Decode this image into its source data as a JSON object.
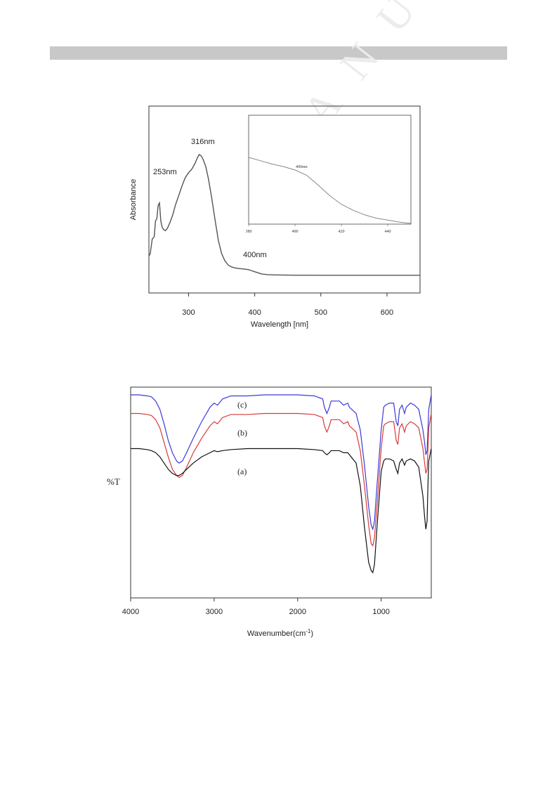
{
  "watermark": "MANUSCRIPT",
  "chart_data": [
    {
      "type": "line",
      "title": "",
      "xlabel": "Wavelength [nm]",
      "ylabel": "Absorbance",
      "xlim": [
        240,
        650
      ],
      "xticks": [
        300,
        400,
        500,
        600
      ],
      "annotations": [
        "253nm",
        "316nm",
        "400nm"
      ],
      "series": [
        {
          "color": "#555555",
          "x": [
            240,
            242,
            245,
            248,
            250,
            252,
            254,
            256,
            258,
            260,
            262,
            265,
            268,
            272,
            276,
            280,
            285,
            290,
            295,
            300,
            305,
            310,
            313,
            316,
            319,
            322,
            326,
            330,
            335,
            340,
            345,
            350,
            355,
            360,
            365,
            370,
            375,
            380,
            385,
            390,
            395,
            400,
            405,
            410,
            420,
            430,
            440,
            460,
            480,
            500,
            550,
            600,
            650
          ],
          "y": [
            0.16,
            0.18,
            0.3,
            0.32,
            0.45,
            0.47,
            0.58,
            0.6,
            0.45,
            0.4,
            0.38,
            0.37,
            0.39,
            0.44,
            0.5,
            0.58,
            0.66,
            0.74,
            0.81,
            0.85,
            0.88,
            0.93,
            0.97,
            1.0,
            0.99,
            0.96,
            0.9,
            0.8,
            0.64,
            0.46,
            0.29,
            0.18,
            0.12,
            0.085,
            0.07,
            0.062,
            0.058,
            0.055,
            0.052,
            0.048,
            0.04,
            0.03,
            0.022,
            0.012,
            0.006,
            0.004,
            0.003,
            0.002,
            0.002,
            0.001,
            0.001,
            0.001,
            0.001
          ]
        }
      ]
    },
    {
      "type": "line",
      "title": "",
      "xlabel": "",
      "ylabel": "",
      "xlim": [
        380,
        450
      ],
      "xticks": [
        380,
        400,
        420,
        440
      ],
      "annotations": [
        "400nm"
      ],
      "series": [
        {
          "color": "#888888",
          "x": [
            380,
            385,
            390,
            395,
            400,
            405,
            410,
            415,
            420,
            425,
            430,
            435,
            440,
            445,
            450
          ],
          "y": [
            1.0,
            0.95,
            0.9,
            0.86,
            0.81,
            0.73,
            0.58,
            0.42,
            0.29,
            0.2,
            0.13,
            0.08,
            0.05,
            0.02,
            0.0
          ]
        }
      ]
    },
    {
      "type": "line",
      "title": "",
      "xlabel": "Wavenumber(cm",
      "xlabel_sup": "-1",
      "xlabel_end": ")",
      "ylabel": "%T",
      "xlim": [
        4000,
        400
      ],
      "xticks": [
        4000,
        3000,
        2000,
        1000
      ],
      "series": [
        {
          "name": "(c)",
          "color": "#3a3ad8",
          "x": [
            4000,
            3900,
            3800,
            3750,
            3700,
            3650,
            3600,
            3550,
            3500,
            3450,
            3420,
            3380,
            3330,
            3250,
            3150,
            3050,
            3000,
            2960,
            2900,
            2800,
            2600,
            2400,
            2200,
            2000,
            1800,
            1700,
            1680,
            1650,
            1620,
            1600,
            1500,
            1450,
            1400,
            1380,
            1300,
            1250,
            1200,
            1150,
            1120,
            1100,
            1080,
            1050,
            1000,
            970,
            950,
            900,
            850,
            820,
            800,
            780,
            750,
            720,
            700,
            650,
            600,
            550,
            500,
            480,
            465,
            450,
            440,
            430,
            400
          ],
          "y": [
            99,
            99,
            98.5,
            98,
            96,
            92,
            85,
            77,
            71,
            67,
            66,
            67,
            71,
            78,
            86,
            93,
            95,
            94,
            97,
            98.5,
            98.5,
            99,
            99,
            99,
            98.5,
            97,
            93,
            90,
            93,
            96,
            96,
            94,
            95,
            93,
            90,
            82,
            65,
            45,
            36,
            34,
            38,
            55,
            82,
            93,
            94,
            95,
            95,
            86,
            84,
            92,
            94,
            90,
            93,
            95,
            94,
            92,
            82,
            76,
            70,
            72,
            82,
            92,
            99
          ]
        },
        {
          "name": "(b)",
          "color": "#d83a3a",
          "x": [
            4000,
            3900,
            3800,
            3750,
            3700,
            3650,
            3600,
            3550,
            3500,
            3450,
            3420,
            3380,
            3330,
            3250,
            3150,
            3050,
            3000,
            2960,
            2900,
            2800,
            2600,
            2400,
            2200,
            2000,
            1800,
            1700,
            1680,
            1650,
            1620,
            1600,
            1500,
            1450,
            1400,
            1380,
            1300,
            1250,
            1200,
            1150,
            1120,
            1100,
            1080,
            1050,
            1000,
            970,
            950,
            900,
            850,
            820,
            800,
            780,
            750,
            720,
            700,
            650,
            600,
            550,
            500,
            480,
            465,
            450,
            440,
            430,
            400
          ],
          "y": [
            90,
            90,
            89.5,
            89,
            87,
            83,
            76,
            69,
            63,
            60,
            59,
            60,
            64,
            71,
            78,
            84,
            86,
            85,
            88,
            89.5,
            89.5,
            90,
            90,
            90,
            89.5,
            88,
            84,
            81,
            84,
            87,
            87,
            85,
            86,
            84,
            81,
            72,
            55,
            36,
            27,
            26,
            30,
            45,
            73,
            84,
            85,
            86,
            86,
            77,
            75,
            83,
            85,
            81,
            84,
            86,
            85,
            83,
            73,
            66,
            61,
            63,
            73,
            83,
            90
          ]
        },
        {
          "name": "(a)",
          "color": "#111111",
          "x": [
            4000,
            3900,
            3800,
            3750,
            3700,
            3650,
            3600,
            3550,
            3500,
            3450,
            3420,
            3380,
            3330,
            3250,
            3150,
            3050,
            3000,
            2960,
            2900,
            2800,
            2600,
            2400,
            2200,
            2000,
            1800,
            1700,
            1680,
            1650,
            1620,
            1600,
            1500,
            1450,
            1400,
            1380,
            1300,
            1250,
            1200,
            1150,
            1120,
            1100,
            1080,
            1050,
            1000,
            970,
            950,
            900,
            850,
            820,
            800,
            780,
            750,
            720,
            700,
            650,
            600,
            550,
            500,
            480,
            465,
            450,
            440,
            430,
            400
          ],
          "y": [
            73,
            73,
            72.5,
            72,
            71,
            69,
            66,
            63,
            61,
            60,
            60,
            61,
            63,
            66,
            69,
            71,
            72,
            71.5,
            72,
            72.5,
            73,
            73,
            73,
            73,
            72.5,
            72,
            71,
            70,
            71,
            72,
            72,
            71,
            71,
            70,
            66,
            55,
            35,
            18,
            14,
            13,
            17,
            35,
            62,
            67,
            68,
            68,
            67,
            63,
            61,
            66,
            68,
            65,
            67,
            68,
            67,
            64,
            50,
            40,
            34,
            38,
            55,
            67,
            73
          ]
        }
      ]
    }
  ]
}
